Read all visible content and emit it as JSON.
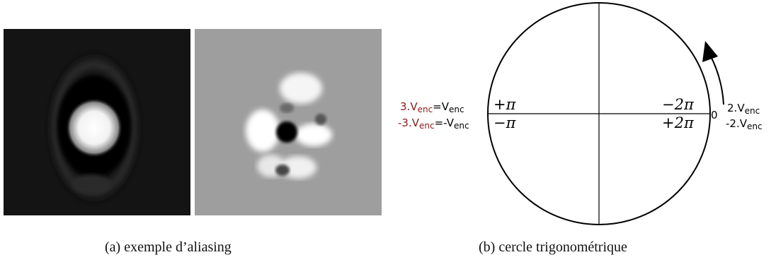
{
  "figure_a": {
    "caption": "(a)  exemple d’aliasing"
  },
  "figure_b": {
    "caption": "(b)  cercle trigonométrique",
    "left_top_prefix": "3.",
    "left_top_v": "V",
    "left_top_sub": "enc",
    "left_top_eq": "=V",
    "left_top_eq_sub": "enc",
    "left_bottom_prefix": "-3.",
    "left_bottom_v": "V",
    "left_bottom_sub": "enc",
    "left_bottom_eq": "=-V",
    "left_bottom_eq_sub": "enc",
    "plus_pi": "+π",
    "minus_pi": "−π",
    "minus_2pi": "−2π",
    "plus_2pi": "+2π",
    "zero": "0",
    "right_top_prefix": "2.",
    "right_top_v": "V",
    "right_top_sub": "enc",
    "right_bottom_prefix": "-2.",
    "right_bottom_v": "V",
    "right_bottom_sub": "enc",
    "accent_color": "#8b1a1a"
  }
}
